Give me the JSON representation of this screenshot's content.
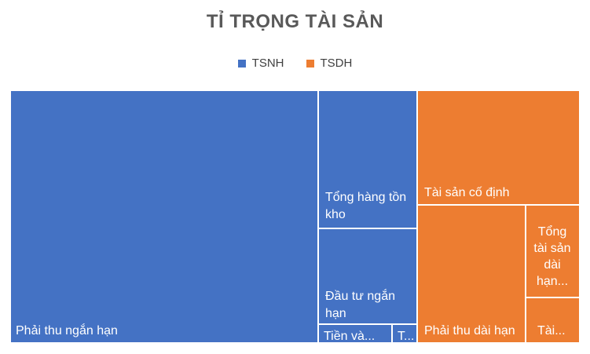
{
  "chart_data": {
    "type": "treemap",
    "title": "TỈ TRỌNG TÀI SẢN",
    "legend": {
      "position": "top",
      "entries": [
        {
          "name": "TSNH",
          "color": "#4472c4"
        },
        {
          "name": "TSDH",
          "color": "#ed7d31"
        }
      ]
    },
    "series": [
      {
        "name": "TSNH",
        "color": "#4472c4",
        "items": [
          {
            "label": "Phải thu ngắn hạn",
            "value": 124900
          },
          {
            "label": "Tổng hàng tồn kho",
            "value": 22800
          },
          {
            "label": "Đầu tư ngắn hạn",
            "value": 15300
          },
          {
            "label": "Tiền và...",
            "value": 2400
          },
          {
            "label": "T...",
            "value": 700
          }
        ]
      },
      {
        "name": "TSDH",
        "color": "#ed7d31",
        "items": [
          {
            "label": "Tài sản cố định",
            "value": 30500
          },
          {
            "label": "Phải thu dài hạn",
            "value": 23700
          },
          {
            "label": "Tổng tài sản dài hạn...",
            "value": 7300
          },
          {
            "label": "Tài...",
            "value": 3100
          }
        ]
      }
    ]
  }
}
